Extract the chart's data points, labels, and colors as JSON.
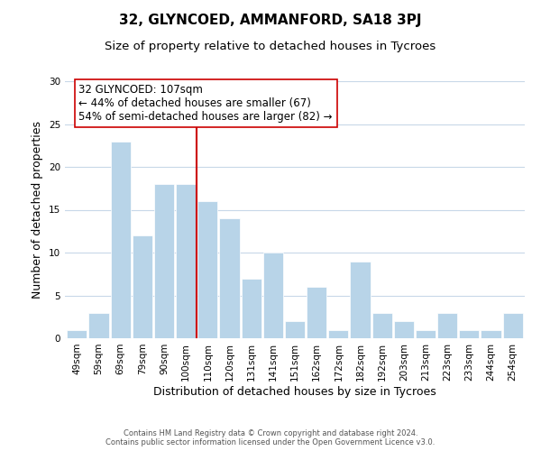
{
  "title": "32, GLYNCOED, AMMANFORD, SA18 3PJ",
  "subtitle": "Size of property relative to detached houses in Tycroes",
  "xlabel": "Distribution of detached houses by size in Tycroes",
  "ylabel": "Number of detached properties",
  "footer_line1": "Contains HM Land Registry data © Crown copyright and database right 2024.",
  "footer_line2": "Contains public sector information licensed under the Open Government Licence v3.0.",
  "bins": [
    "49sqm",
    "59sqm",
    "69sqm",
    "79sqm",
    "90sqm",
    "100sqm",
    "110sqm",
    "120sqm",
    "131sqm",
    "141sqm",
    "151sqm",
    "162sqm",
    "172sqm",
    "182sqm",
    "192sqm",
    "203sqm",
    "213sqm",
    "223sqm",
    "233sqm",
    "244sqm",
    "254sqm"
  ],
  "values": [
    1,
    3,
    23,
    12,
    18,
    18,
    16,
    14,
    7,
    10,
    2,
    6,
    1,
    9,
    3,
    2,
    1,
    3,
    1,
    1,
    3
  ],
  "bar_color": "#b8d4e8",
  "bar_edge_color": "#ffffff",
  "vline_x_index": 6,
  "vline_color": "#cc0000",
  "annotation_line1": "32 GLYNCOED: 107sqm",
  "annotation_line2": "← 44% of detached houses are smaller (67)",
  "annotation_line3": "54% of semi-detached houses are larger (82) →",
  "annotation_box_color": "#ffffff",
  "annotation_box_edge": "#cc0000",
  "ylim": [
    0,
    30
  ],
  "yticks": [
    0,
    5,
    10,
    15,
    20,
    25,
    30
  ],
  "bg_color": "#ffffff",
  "grid_color": "#c8d8e8",
  "title_fontsize": 11,
  "subtitle_fontsize": 9.5,
  "axis_label_fontsize": 9,
  "tick_fontsize": 7.5,
  "annotation_fontsize": 8.5,
  "footer_fontsize": 6.0
}
